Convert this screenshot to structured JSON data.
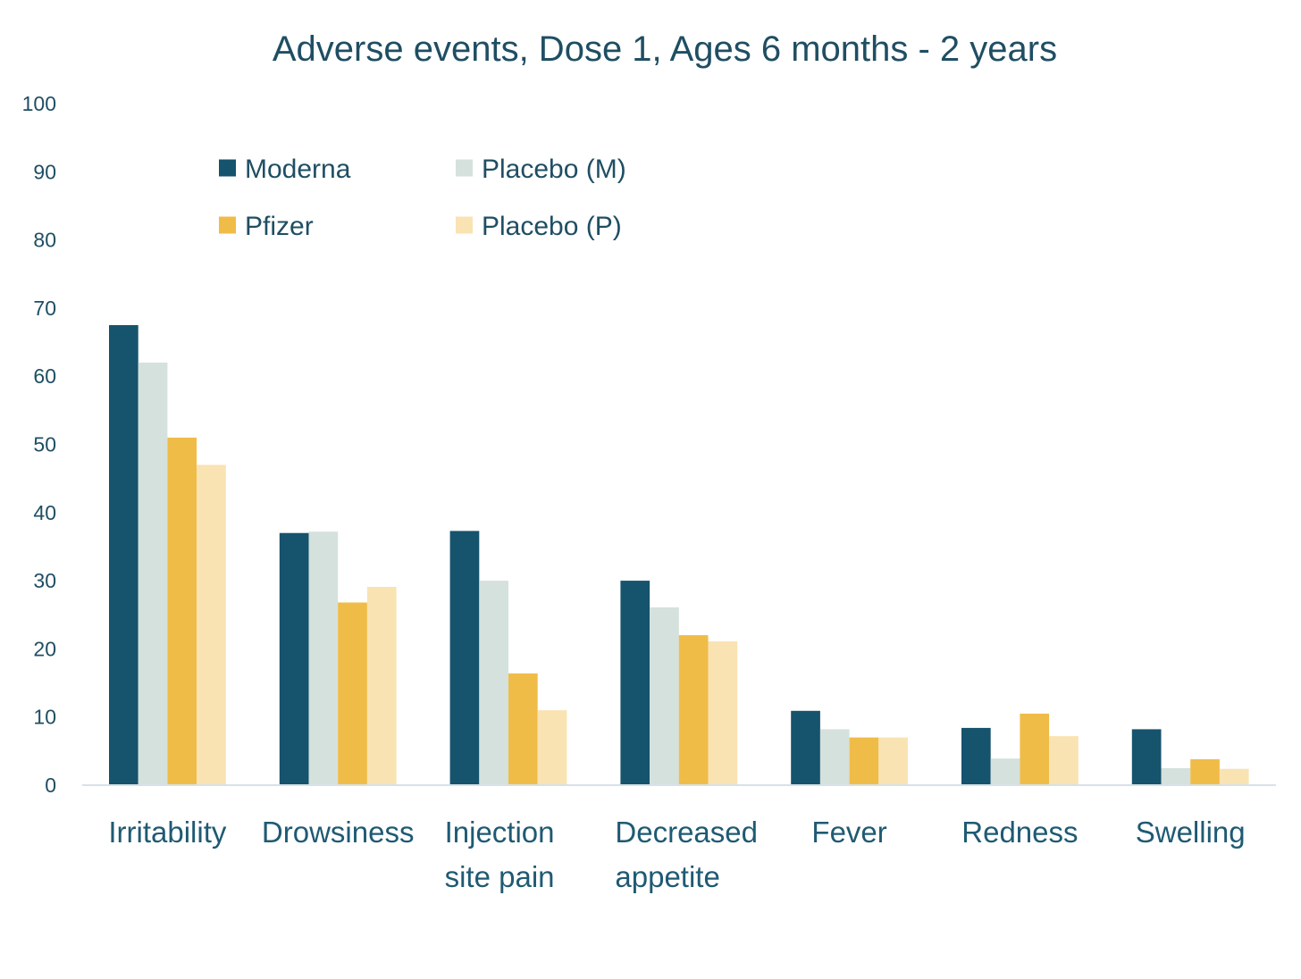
{
  "chart_data": {
    "type": "bar",
    "title": "Adverse events, Dose 1, Ages 6 months - 2 years",
    "xlabel": "",
    "ylabel": "",
    "ylim": [
      0,
      100
    ],
    "yticks": [
      0,
      10,
      20,
      30,
      40,
      50,
      60,
      70,
      80,
      90,
      100
    ],
    "grid": false,
    "legend_position": "top-left",
    "categories": [
      [
        "Irritability"
      ],
      [
        "Drowsiness"
      ],
      [
        "Injection",
        "site pain"
      ],
      [
        "Decreased",
        "appetite"
      ],
      [
        "Fever"
      ],
      [
        "Redness"
      ],
      [
        "Swelling"
      ]
    ],
    "series": [
      {
        "name": "Moderna",
        "color": "#16536d",
        "values": [
          67.5,
          37.0,
          37.3,
          30.0,
          10.9,
          8.4,
          8.2
        ]
      },
      {
        "name": "Placebo (M)",
        "color": "#d5e1dc",
        "values": [
          62.0,
          37.2,
          30.0,
          26.1,
          8.2,
          3.9,
          2.5
        ]
      },
      {
        "name": "Pfizer",
        "color": "#f0bc48",
        "values": [
          51.0,
          26.8,
          16.4,
          22.0,
          7.0,
          10.5,
          3.8
        ]
      },
      {
        "name": "Placebo (P)",
        "color": "#f9e3b3",
        "values": [
          47.0,
          29.1,
          11.0,
          21.1,
          7.0,
          7.2,
          2.4
        ]
      }
    ]
  }
}
